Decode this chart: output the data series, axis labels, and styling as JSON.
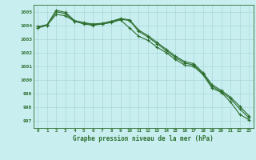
{
  "line1": [
    1003.8,
    1004.0,
    1004.8,
    1004.7,
    1004.3,
    1004.1,
    1004.0,
    1004.1,
    1004.2,
    1004.4,
    1003.8,
    1003.2,
    1002.9,
    1002.4,
    1002.0,
    1001.5,
    1001.1,
    1001.0,
    1000.4,
    999.4,
    999.1,
    998.4,
    997.5,
    997.1
  ],
  "line2": [
    1003.9,
    1004.0,
    1005.0,
    1004.85,
    1004.3,
    1004.15,
    1004.05,
    1004.1,
    1004.25,
    1004.45,
    1004.35,
    1003.55,
    1003.15,
    1002.65,
    1002.15,
    1001.65,
    1001.25,
    1001.1,
    1000.45,
    999.55,
    999.15,
    998.65,
    997.9,
    997.25
  ],
  "line3": [
    1003.9,
    1004.05,
    1005.1,
    1004.95,
    1004.35,
    1004.2,
    1004.1,
    1004.15,
    1004.3,
    1004.5,
    1004.4,
    1003.65,
    1003.25,
    1002.75,
    1002.25,
    1001.75,
    1001.35,
    1001.2,
    1000.55,
    999.65,
    999.25,
    998.75,
    998.1,
    997.4
  ],
  "x": [
    0,
    1,
    2,
    3,
    4,
    5,
    6,
    7,
    8,
    9,
    10,
    11,
    12,
    13,
    14,
    15,
    16,
    17,
    18,
    19,
    20,
    21,
    22,
    23
  ],
  "line_color": "#2d6e2d",
  "bg_color": "#c8eef0",
  "grid_color": "#a8d8da",
  "xlabel": "Graphe pression niveau de la mer (hPa)",
  "ylim": [
    996.5,
    1005.5
  ],
  "yticks": [
    997,
    998,
    999,
    1000,
    1001,
    1002,
    1003,
    1004,
    1005
  ]
}
